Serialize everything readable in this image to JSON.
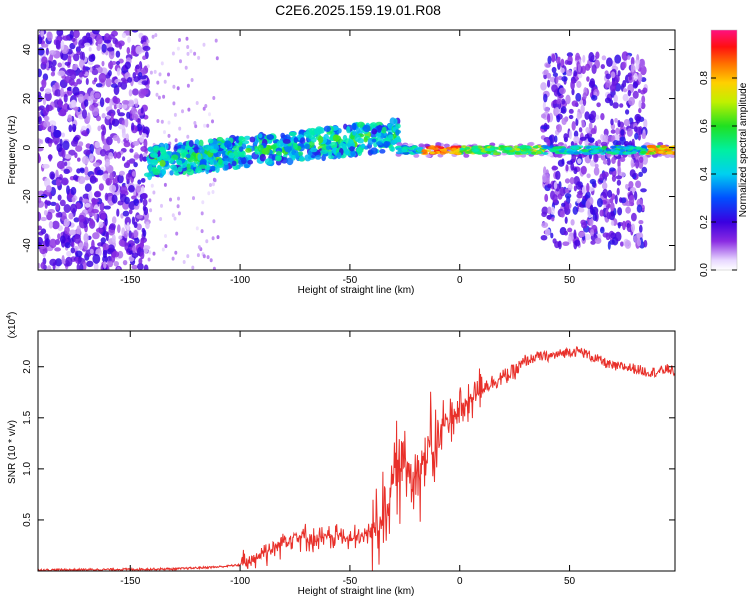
{
  "title": "C2E6.2025.159.19.01.R08",
  "colors": {
    "snr_line": "#e8302a",
    "frame": "#000000"
  },
  "chart_data": [
    {
      "type": "heatmap",
      "title": "C2E6.2025.159.19.01.R08",
      "xlabel": "Height of straight line (km)",
      "ylabel": "Frequency (Hz)",
      "xlim": [
        -192,
        98
      ],
      "ylim": [
        -50,
        48
      ],
      "x_ticks": [
        -150,
        -100,
        -50,
        0,
        50
      ],
      "y_ticks": [
        -40,
        -20,
        0,
        20,
        40
      ],
      "colorbar": {
        "label": "Normalized spectral amplitude",
        "range": [
          0.0,
          1.0
        ],
        "ticks": [
          0.0,
          0.2,
          0.4,
          0.6,
          0.8
        ],
        "colormap": "rainbow (white-violet at 0, blue, cyan, green, yellow, orange, red, magenta at 1)"
      },
      "regions": [
        {
          "x_range": [
            -192,
            -142
          ],
          "freq_range": [
            -50,
            48
          ],
          "amplitude": "low (0.05-0.25)",
          "pattern": "scattered noise"
        },
        {
          "x_range": [
            -142,
            -28
          ],
          "freq_center_start": -6,
          "freq_center_end": 5,
          "band_halfwidth": 5,
          "amplitude": "0.2-0.6",
          "pattern": "rising band"
        },
        {
          "x_range": [
            -28,
            38
          ],
          "freq_center": -1,
          "band_halfwidth": 1.5,
          "amplitude": "0.5-1.0",
          "pattern": "narrow band near zero"
        },
        {
          "x_range": [
            38,
            85
          ],
          "freq_range": [
            -40,
            38
          ],
          "amplitude": "low (0.05-0.25)",
          "pattern": "scattered noise with narrow band at -1 Hz"
        },
        {
          "x_range": [
            85,
            98
          ],
          "freq_center": -1,
          "band_halfwidth": 1.5,
          "amplitude": "0.5-0.9",
          "pattern": "narrow band"
        }
      ]
    },
    {
      "type": "line",
      "xlabel": "Height of straight line (km)",
      "ylabel": "SNR (10 * v/v)",
      "y_multiplier": "(x10^4)",
      "xlim": [
        -192,
        98
      ],
      "ylim": [
        0,
        2.35
      ],
      "x_ticks": [
        -150,
        -100,
        -50,
        0,
        50
      ],
      "y_ticks": [
        0.5,
        1.0,
        1.5,
        2.0
      ],
      "series": [
        {
          "x": [
            -192,
            -160,
            -130,
            -110,
            -100,
            -95,
            -90,
            -85,
            -80,
            -75,
            -70,
            -65,
            -60,
            -55,
            -50,
            -45,
            -40,
            -35,
            -32,
            -30,
            -28,
            -26,
            -24,
            -22,
            -20,
            -18,
            -16,
            -14,
            -12,
            -10,
            -8,
            -5,
            -2,
            0,
            2,
            5,
            8,
            10,
            15,
            20,
            25,
            30,
            35,
            40,
            45,
            50,
            55,
            60,
            65,
            70,
            75,
            80,
            85,
            90,
            95,
            98
          ],
          "y": [
            0.01,
            0.015,
            0.02,
            0.04,
            0.06,
            0.1,
            0.18,
            0.22,
            0.3,
            0.35,
            0.33,
            0.3,
            0.33,
            0.35,
            0.3,
            0.32,
            0.4,
            0.55,
            0.75,
            0.9,
            1.0,
            1.0,
            1.05,
            1.0,
            0.95,
            1.0,
            1.1,
            1.2,
            1.15,
            1.25,
            1.4,
            1.5,
            1.55,
            1.6,
            1.6,
            1.7,
            1.75,
            1.8,
            1.85,
            1.9,
            1.95,
            2.05,
            2.1,
            2.1,
            2.12,
            2.15,
            2.15,
            2.1,
            2.05,
            2.0,
            2.0,
            1.98,
            1.95,
            1.95,
            1.98,
            1.95
          ]
        }
      ]
    }
  ]
}
